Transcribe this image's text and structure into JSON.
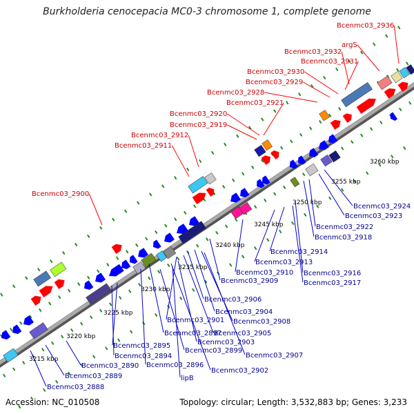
{
  "title": "Burkholderia cenocepacia MC0-3 chromosome 1, complete genome",
  "footer": {
    "accession": "Accession: NC_010508",
    "summary": "Topology: circular; Length: 3,532,883 bp; Genes: 3,233"
  },
  "colors": {
    "forward_strand": "#ff0000",
    "reverse_strand": "#0000ff",
    "backbone": "#888888",
    "ticks": "#228b22",
    "label_forward": "#cc0000",
    "label_reverse": "#00008b"
  },
  "kbp_ticks": [
    "3215 kbp",
    "3220 kbp",
    "3225 kbp",
    "3230 kbp",
    "3235 kbp",
    "3240 kbp",
    "3245 kbp",
    "3250 kbp",
    "3255 kbp",
    "3260 kbp"
  ],
  "forward_labels": [
    "Bcenmc03_2936",
    "argS",
    "Bcenmc03_2932",
    "Bcenmc03_2931",
    "Bcenmc03_2930",
    "Bcenmc03_2929",
    "Bcenmc03_2928",
    "Bcenmc03_2921",
    "Bcenmc03_2920",
    "Bcenmc03_2919",
    "Bcenmc03_2912",
    "Bcenmc03_2911",
    "Bcenmc03_2900"
  ],
  "reverse_labels": [
    "Bcenmc03_2924",
    "Bcenmc03_2923",
    "Bcenmc03_2922",
    "Bcenmc03_2918",
    "Bcenmc03_2914",
    "Bcenmc03_2913",
    "Bcenmc03_2916",
    "Bcenmc03_2917",
    "Bcenmc03_2910",
    "Bcenmc03_2909",
    "Bcenmc03_2906",
    "Bcenmc03_2904",
    "Bcenmc03_2908",
    "Bcenmc03_2901",
    "Bcenmc03_2905",
    "Bcenmc03_2897",
    "Bcenmc03_2903",
    "Bcenmc03_2899",
    "Bcenmc03_2895",
    "Bcenmc03_2907",
    "Bcenmc03_2894",
    "Bcenmc03_2896",
    "Bcenmc03_2890",
    "Bcenmc03_2902",
    "lipB",
    "Bcenmc03_2889",
    "Bcenmc03_2888"
  ]
}
